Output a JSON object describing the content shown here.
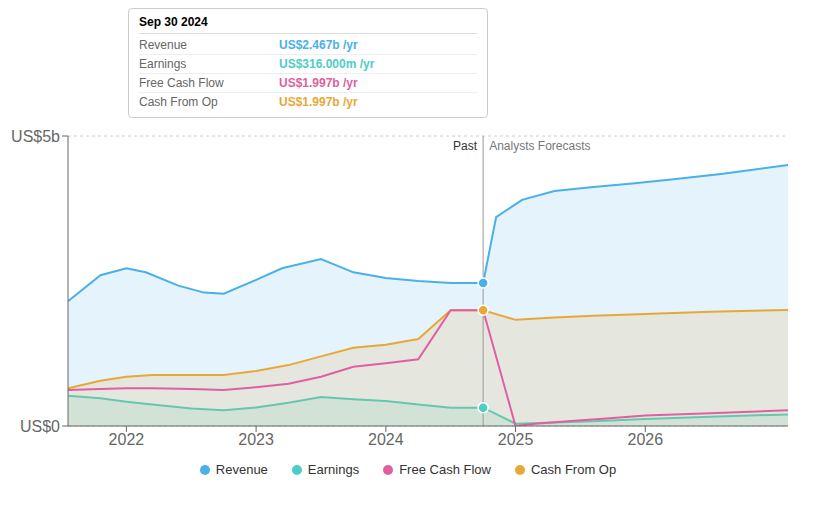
{
  "chart_data": {
    "type": "line",
    "xlim": [
      2021.55,
      2027.1
    ],
    "xticks": [
      2022,
      2023,
      2024,
      2025,
      2026
    ],
    "ylim": [
      0,
      5.0
    ],
    "yticks": [
      {
        "value": 0,
        "label": "US$0"
      },
      {
        "value": 5.0,
        "label": "US$5b"
      }
    ],
    "grid": true,
    "legend": "bottom",
    "divider_x": 2024.75,
    "past_label": "Past",
    "forecast_label": "Analysts Forecasts",
    "series": [
      {
        "name": "Revenue",
        "color": "#4ab0e8",
        "type": "area",
        "x": [
          2021.55,
          2021.8,
          2022.0,
          2022.15,
          2022.4,
          2022.6,
          2022.75,
          2023.0,
          2023.2,
          2023.5,
          2023.75,
          2024.0,
          2024.25,
          2024.5,
          2024.75,
          2024.75,
          2024.85,
          2025.05,
          2025.3,
          2025.6,
          2025.9,
          2026.2,
          2026.6,
          2027.1
        ],
        "values": [
          2.15,
          2.6,
          2.72,
          2.65,
          2.42,
          2.3,
          2.28,
          2.52,
          2.72,
          2.88,
          2.65,
          2.55,
          2.5,
          2.467,
          2.467,
          2.467,
          3.6,
          3.9,
          4.05,
          4.12,
          4.18,
          4.25,
          4.35,
          4.5
        ]
      },
      {
        "name": "Earnings",
        "color": "#4ecdc4",
        "type": "area",
        "x": [
          2021.55,
          2021.8,
          2022.0,
          2022.2,
          2022.5,
          2022.75,
          2023.0,
          2023.25,
          2023.5,
          2023.75,
          2024.0,
          2024.25,
          2024.5,
          2024.75,
          2024.75,
          2025.0,
          2025.3,
          2025.6,
          2026.0,
          2026.5,
          2027.1
        ],
        "values": [
          0.52,
          0.48,
          0.42,
          0.37,
          0.3,
          0.27,
          0.32,
          0.4,
          0.5,
          0.46,
          0.43,
          0.37,
          0.316,
          0.316,
          0.316,
          0.04,
          0.06,
          0.08,
          0.12,
          0.16,
          0.2
        ]
      },
      {
        "name": "Free Cash Flow",
        "color": "#e05fa0",
        "type": "line",
        "x": [
          2021.55,
          2021.8,
          2022.0,
          2022.2,
          2022.5,
          2022.75,
          2023.0,
          2023.25,
          2023.5,
          2023.75,
          2024.0,
          2024.25,
          2024.5,
          2024.75,
          2024.75,
          2025.0,
          2025.15,
          2025.4,
          2025.7,
          2026.0,
          2026.5,
          2027.1
        ],
        "values": [
          0.62,
          0.64,
          0.65,
          0.65,
          0.64,
          0.62,
          0.67,
          0.73,
          0.85,
          1.02,
          1.08,
          1.15,
          1.997,
          1.997,
          1.997,
          0.0,
          0.04,
          0.08,
          0.13,
          0.18,
          0.22,
          0.27
        ]
      },
      {
        "name": "Cash From Op",
        "color": "#e8a838",
        "type": "area",
        "x": [
          2021.55,
          2021.8,
          2022.0,
          2022.2,
          2022.5,
          2022.75,
          2023.0,
          2023.25,
          2023.5,
          2023.75,
          2024.0,
          2024.25,
          2024.5,
          2024.75,
          2024.75,
          2025.0,
          2025.3,
          2025.6,
          2026.0,
          2026.5,
          2027.1
        ],
        "values": [
          0.65,
          0.78,
          0.85,
          0.88,
          0.88,
          0.88,
          0.95,
          1.05,
          1.2,
          1.35,
          1.4,
          1.5,
          1.997,
          1.997,
          1.997,
          1.83,
          1.87,
          1.9,
          1.93,
          1.97,
          2.0
        ]
      }
    ],
    "highlight_points": [
      {
        "series": "Revenue",
        "x": 2024.75,
        "y": 2.467
      },
      {
        "series": "Cash From Op",
        "x": 2024.75,
        "y": 1.997
      },
      {
        "series": "Earnings",
        "x": 2024.75,
        "y": 0.316
      }
    ],
    "tooltip": {
      "title": "Sep 30 2024",
      "rows": [
        {
          "label": "Revenue",
          "value": "US$2.467b /yr",
          "color": "#4ab0e8"
        },
        {
          "label": "Earnings",
          "value": "US$316.000m /yr",
          "color": "#4ecdc4"
        },
        {
          "label": "Free Cash Flow",
          "value": "US$1.997b /yr",
          "color": "#e05fa0"
        },
        {
          "label": "Cash From Op",
          "value": "US$1.997b /yr",
          "color": "#e8a838"
        }
      ]
    }
  }
}
